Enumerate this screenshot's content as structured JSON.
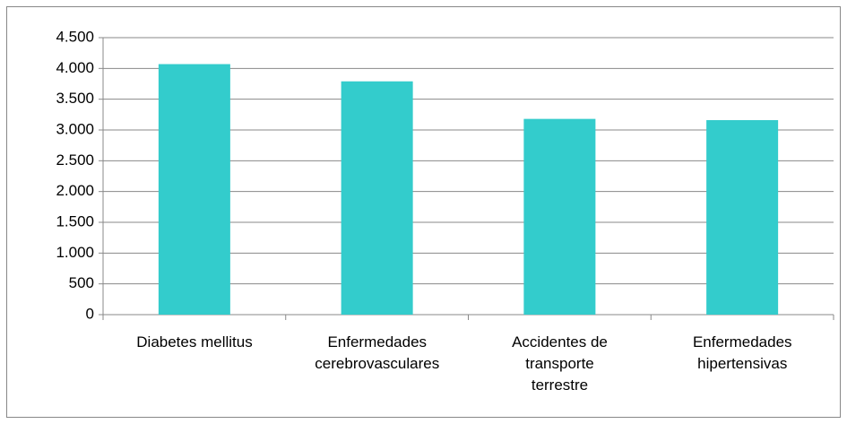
{
  "chart_data": {
    "type": "bar",
    "categories": [
      "Diabetes mellitus",
      "Enfermedades\ncerebrovasculares",
      "Accidentes de\ntransporte\nterrestre",
      "Enfermedades\nhipertensivas"
    ],
    "values": [
      4070,
      3790,
      3180,
      3160
    ],
    "color": "#33cccc",
    "ylim": [
      0,
      4500
    ],
    "yticks": [
      0,
      500,
      {
        "value": 1000,
        "label": "1.000"
      },
      {
        "value": 1500,
        "label": "1.500"
      },
      {
        "value": 2000,
        "label": "2.000"
      },
      {
        "value": 2500,
        "label": "2.500"
      },
      {
        "value": 3000,
        "label": "3.000"
      },
      {
        "value": 3500,
        "label": "3.500"
      },
      {
        "value": 4000,
        "label": "4.000"
      },
      {
        "value": 4500,
        "label": "4.500"
      }
    ],
    "grid": true
  }
}
